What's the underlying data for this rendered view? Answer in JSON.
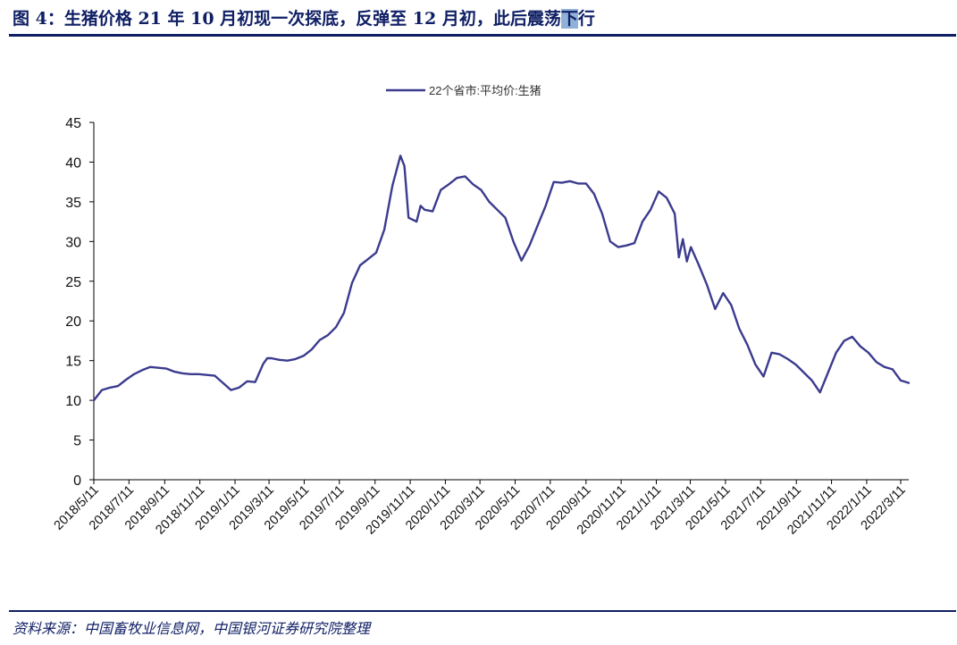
{
  "title": {
    "main": "图 4：生猪价格 21 年 10 月初现一次探底，反弹至 12 月初，此后震荡",
    "highlight": "下",
    "tail": "行"
  },
  "source": "资料来源：中国畜牧业信息网，中国银河证券研究院整理",
  "colors": {
    "line": "#3b3b8f",
    "title": "#0f1f64",
    "axis": "#000000"
  },
  "chart_data": {
    "type": "line",
    "legend": {
      "position": "top-center"
    },
    "ylim": [
      0,
      45
    ],
    "yticks": [
      "0",
      "5",
      "10",
      "15",
      "20",
      "25",
      "30",
      "35",
      "40",
      "45"
    ],
    "xticks": [
      "2018/5/11",
      "2018/7/11",
      "2018/9/11",
      "2018/11/11",
      "2019/1/11",
      "2019/3/11",
      "2019/5/11",
      "2019/7/11",
      "2019/9/11",
      "2019/11/11",
      "2020/1/11",
      "2020/3/11",
      "2020/5/11",
      "2020/7/11",
      "2020/9/11",
      "2020/11/11",
      "2021/1/11",
      "2021/3/11",
      "2021/5/11",
      "2021/7/11",
      "2021/9/11",
      "2021/11/11",
      "2022/1/11",
      "2022/3/11"
    ],
    "series": [
      {
        "name": "22个省市:平均价:生猪",
        "x": [
          "2018/5/11",
          "2018/5/25",
          "2018/6/8",
          "2018/6/22",
          "2018/7/6",
          "2018/7/20",
          "2018/8/3",
          "2018/8/17",
          "2018/8/31",
          "2018/9/14",
          "2018/9/28",
          "2018/10/12",
          "2018/10/26",
          "2018/11/9",
          "2018/11/23",
          "2018/12/7",
          "2018/12/21",
          "2019/1/4",
          "2019/1/18",
          "2019/2/1",
          "2019/2/15",
          "2019/3/1",
          "2019/3/8",
          "2019/3/15",
          "2019/3/29",
          "2019/4/12",
          "2019/4/26",
          "2019/5/10",
          "2019/5/24",
          "2019/6/7",
          "2019/6/21",
          "2019/7/5",
          "2019/7/19",
          "2019/8/2",
          "2019/8/16",
          "2019/8/30",
          "2019/9/13",
          "2019/9/27",
          "2019/10/11",
          "2019/10/25",
          "2019/11/1",
          "2019/11/8",
          "2019/11/22",
          "2019/11/29",
          "2019/12/6",
          "2019/12/20",
          "2020/1/3",
          "2020/1/17",
          "2020/1/31",
          "2020/2/14",
          "2020/2/28",
          "2020/3/13",
          "2020/3/27",
          "2020/4/10",
          "2020/4/24",
          "2020/5/8",
          "2020/5/22",
          "2020/6/5",
          "2020/6/19",
          "2020/7/3",
          "2020/7/17",
          "2020/7/31",
          "2020/8/14",
          "2020/8/28",
          "2020/9/11",
          "2020/9/25",
          "2020/10/9",
          "2020/10/23",
          "2020/11/6",
          "2020/11/20",
          "2020/12/4",
          "2020/12/18",
          "2021/1/1",
          "2021/1/15",
          "2021/1/29",
          "2021/2/12",
          "2021/2/19",
          "2021/2/26",
          "2021/3/5",
          "2021/3/12",
          "2021/3/26",
          "2021/4/9",
          "2021/4/23",
          "2021/5/7",
          "2021/5/21",
          "2021/6/4",
          "2021/6/18",
          "2021/7/2",
          "2021/7/16",
          "2021/7/30",
          "2021/8/13",
          "2021/8/27",
          "2021/9/10",
          "2021/9/24",
          "2021/10/8",
          "2021/10/22",
          "2021/11/5",
          "2021/11/19",
          "2021/12/3",
          "2021/12/17",
          "2021/12/31",
          "2022/1/14",
          "2022/1/28",
          "2022/2/11",
          "2022/2/25",
          "2022/3/11",
          "2022/3/25"
        ],
        "values": [
          10.0,
          11.3,
          11.6,
          11.8,
          12.6,
          13.3,
          13.8,
          14.2,
          14.1,
          14.0,
          13.6,
          13.4,
          13.3,
          13.3,
          13.2,
          13.1,
          12.2,
          11.3,
          11.6,
          12.4,
          12.3,
          14.6,
          15.3,
          15.3,
          15.1,
          15.0,
          15.2,
          15.6,
          16.4,
          17.6,
          18.2,
          19.2,
          21.0,
          24.8,
          27.0,
          27.8,
          28.6,
          31.5,
          37.0,
          40.8,
          39.5,
          33.0,
          32.5,
          34.5,
          34.0,
          33.8,
          36.5,
          37.2,
          38.0,
          38.2,
          37.2,
          36.5,
          35.0,
          34.0,
          33.0,
          30.0,
          27.6,
          29.5,
          32.0,
          34.5,
          37.5,
          37.4,
          37.6,
          37.3,
          37.3,
          36.0,
          33.5,
          30.0,
          29.3,
          29.5,
          29.8,
          32.5,
          34.0,
          36.3,
          35.5,
          33.5,
          28.0,
          30.3,
          27.5,
          29.3,
          27.0,
          24.5,
          21.5,
          23.5,
          22.0,
          19.0,
          17.0,
          14.5,
          13.0,
          16.0,
          15.8,
          15.2,
          14.5,
          13.5,
          12.5,
          11.0,
          13.5,
          16.0,
          17.5,
          18.0,
          16.8,
          16.0,
          14.8,
          14.2,
          13.9,
          12.5,
          12.2
        ]
      }
    ]
  }
}
